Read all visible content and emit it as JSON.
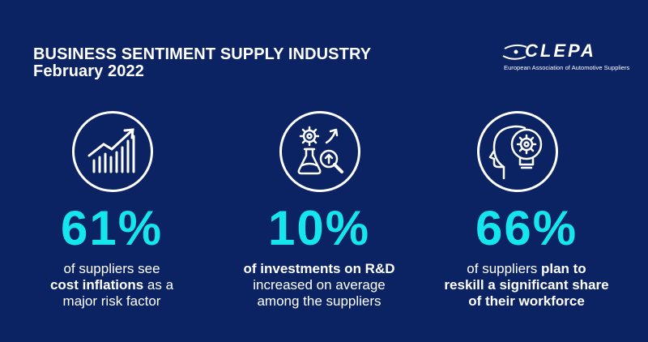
{
  "header": {
    "title_line1": "BUSINESS SENTIMENT SUPPLY INDUSTRY",
    "title_line2": "February 2022"
  },
  "logo": {
    "wordmark": "CLEPA",
    "tagline": "European Association of Automotive Suppliers"
  },
  "colors": {
    "background": "#0b2363",
    "accent": "#15e6ee",
    "text": "#ffffff"
  },
  "stats": [
    {
      "icon": "rising-bar-chart-icon",
      "value": "61%",
      "line1": "of suppliers see",
      "line2_bold": "cost inflations",
      "line2_rest": " as a",
      "line3": "major risk factor"
    },
    {
      "icon": "research-flask-gear-icon",
      "value": "10%",
      "line1_bold": "of investments on R&D",
      "line2": "increased on average",
      "line3": "among the suppliers"
    },
    {
      "icon": "head-lightbulb-gear-icon",
      "value": "66%",
      "line1_start": "of suppliers ",
      "line1_bold": "plan to",
      "line2_bold": "reskill a significant share",
      "line3_bold": "of their workforce"
    }
  ]
}
